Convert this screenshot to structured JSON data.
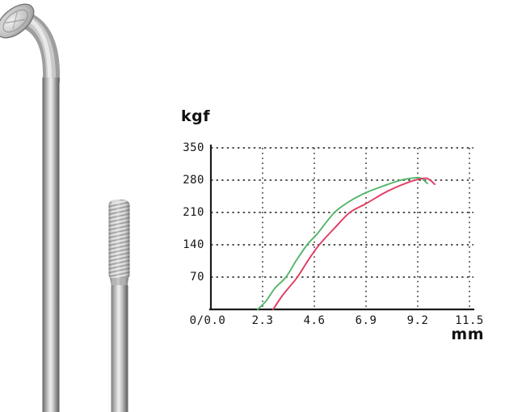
{
  "photo": {
    "items": [
      {
        "name": "j-bend-spoke"
      },
      {
        "name": "threaded-spoke-end"
      }
    ],
    "metal_light": "#ededed",
    "metal_dark": "#616161"
  },
  "chart_data": {
    "type": "line",
    "title": "",
    "ylabel": "kgf",
    "xlabel": "mm",
    "xlim": [
      0,
      11.5
    ],
    "ylim": [
      0,
      350
    ],
    "grid": "dashed",
    "axis_color": "#1a1a1a",
    "grid_color": "#3a3a3a",
    "x_ticks": {
      "values": [
        0,
        2.3,
        4.6,
        6.9,
        9.2,
        11.5
      ],
      "labels": [
        "0/0.0",
        "2.3",
        "4.6",
        "6.9",
        "9.2",
        "11.5"
      ]
    },
    "y_ticks": {
      "values": [
        70,
        140,
        210,
        280,
        350
      ],
      "labels": [
        "70",
        "140",
        "210",
        "280",
        "350"
      ]
    },
    "legend": "none",
    "series": [
      {
        "name": "green-curve",
        "color": "#53b569",
        "points": [
          [
            2.08,
            0
          ],
          [
            2.45,
            18
          ],
          [
            2.85,
            46
          ],
          [
            3.34,
            70
          ],
          [
            3.8,
            106
          ],
          [
            4.28,
            140
          ],
          [
            4.75,
            165
          ],
          [
            5.5,
            210
          ],
          [
            6.2,
            235
          ],
          [
            6.9,
            253
          ],
          [
            7.65,
            267
          ],
          [
            8.45,
            280
          ],
          [
            9.1,
            285
          ],
          [
            9.35,
            284
          ],
          [
            9.63,
            273
          ]
        ]
      },
      {
        "name": "red-curve",
        "color": "#e23b62",
        "points": [
          [
            2.77,
            0
          ],
          [
            3.15,
            28
          ],
          [
            3.55,
            52
          ],
          [
            3.85,
            70
          ],
          [
            4.35,
            108
          ],
          [
            4.82,
            140
          ],
          [
            5.5,
            176
          ],
          [
            6.18,
            210
          ],
          [
            6.9,
            229
          ],
          [
            7.7,
            252
          ],
          [
            8.45,
            269
          ],
          [
            9.09,
            280
          ],
          [
            9.6,
            284
          ],
          [
            9.96,
            271
          ]
        ]
      }
    ]
  }
}
